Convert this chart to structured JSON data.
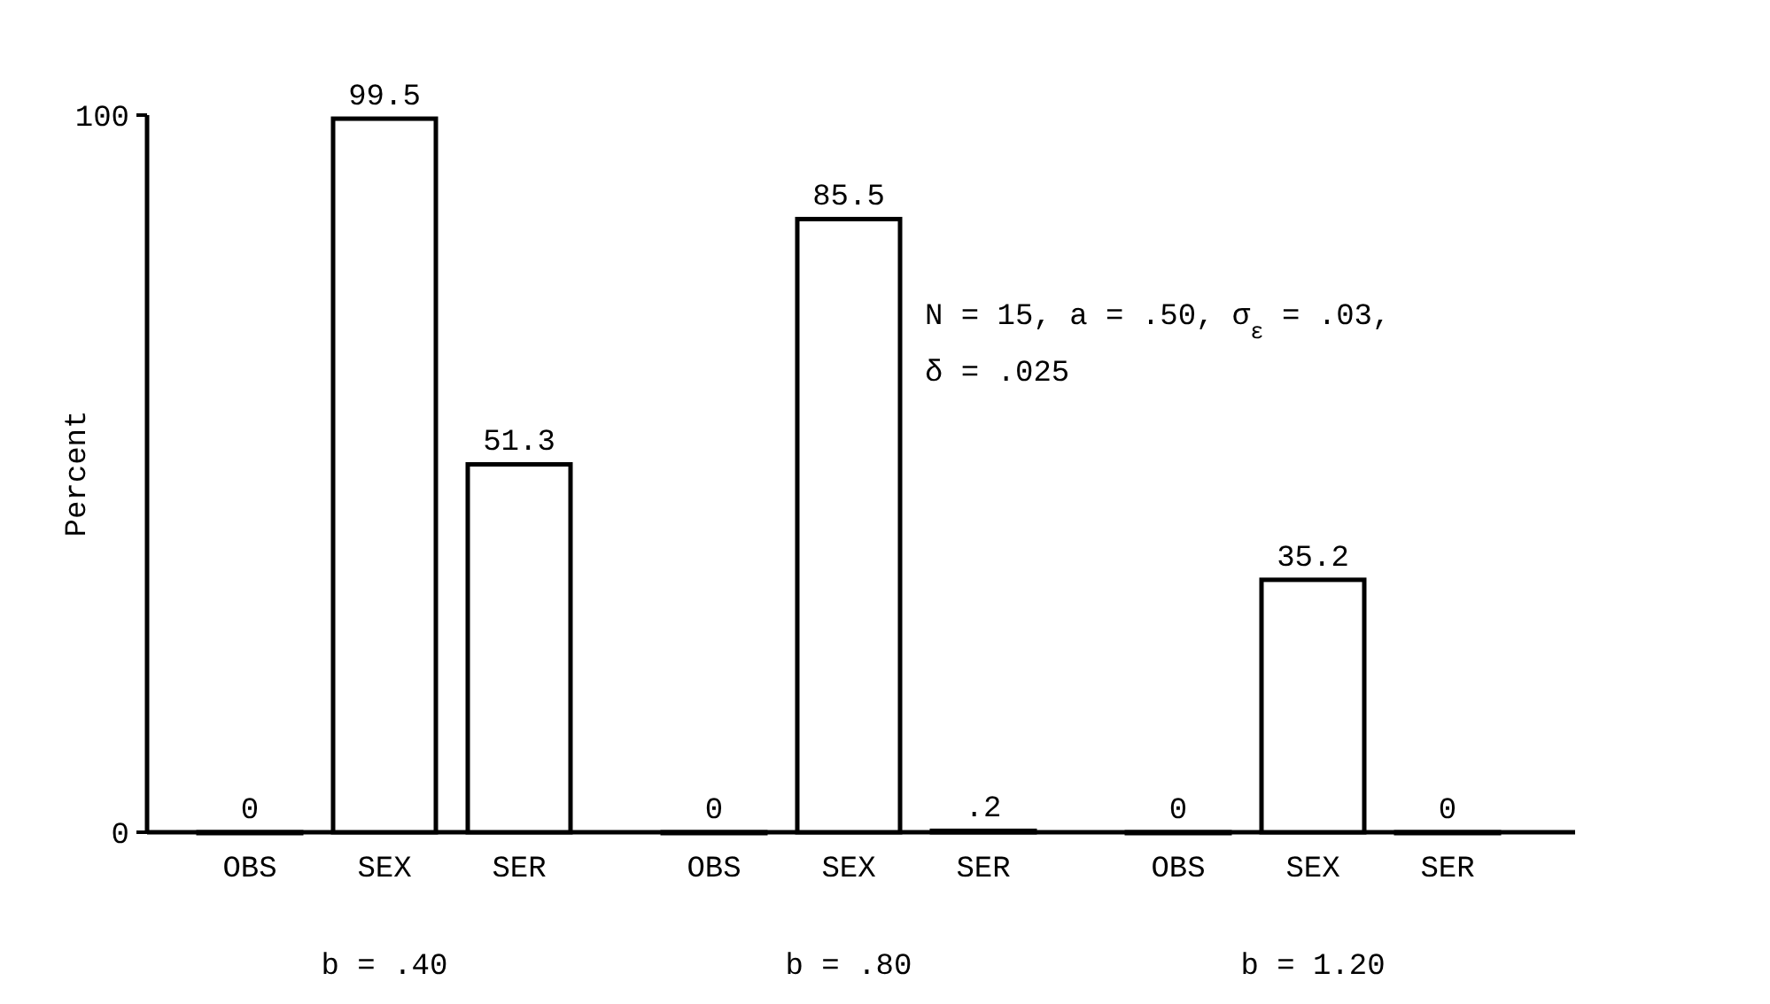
{
  "chart_data": [
    {
      "type": "bar",
      "xlabel": "b = .40",
      "ylabel": "Percent",
      "categories": [
        "OBS",
        "SEX",
        "SER"
      ],
      "series": [
        {
          "color": "#ffffff",
          "values": [
            0,
            99.5,
            51.3
          ],
          "value_labels": [
            "0",
            "99.5",
            "51.3"
          ]
        }
      ],
      "ylim": [
        0,
        100
      ],
      "yticks": [
        0,
        100
      ],
      "grid": false
    },
    {
      "type": "bar",
      "xlabel": "b = .80",
      "categories": [
        "OBS",
        "SEX",
        "SER"
      ],
      "series": [
        {
          "color": "#ffffff",
          "values": [
            0,
            85.5,
            0.2
          ],
          "value_labels": [
            "0",
            "85.5",
            ".2"
          ]
        }
      ],
      "ylim": [
        0,
        100
      ],
      "tick_labels": "x",
      "grid": false,
      "annotations": [
        "N = 15, a = .50, σ$_{ε}$ = .03,",
        "δ = .025"
      ]
    },
    {
      "type": "bar",
      "xlabel": "b = 1.20",
      "categories": [
        "OBS",
        "SEX",
        "SER"
      ],
      "series": [
        {
          "color": "#ffffff",
          "values": [
            0,
            35.2,
            0
          ],
          "value_labels": [
            "0",
            "35.2",
            "0"
          ]
        }
      ],
      "ylim": [
        0,
        100
      ],
      "tick_labels": "x",
      "grid": false
    }
  ]
}
